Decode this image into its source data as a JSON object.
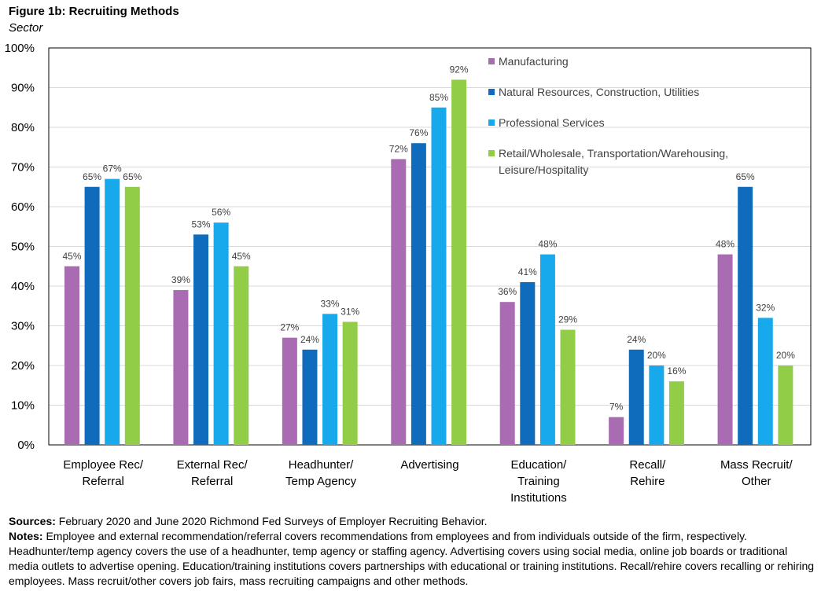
{
  "header": {
    "title": "Figure 1b: Recruiting Methods",
    "subtitle": "Sector"
  },
  "chart_data": {
    "type": "bar",
    "categories": [
      [
        "Employee Rec/",
        "Referral"
      ],
      [
        "External Rec/",
        "Referral"
      ],
      [
        "Headhunter/",
        "Temp Agency"
      ],
      [
        "Advertising"
      ],
      [
        "Education/",
        "Training",
        "Institutions"
      ],
      [
        "Recall/",
        "Rehire"
      ],
      [
        "Mass Recruit/",
        "Other"
      ]
    ],
    "series": [
      {
        "name": "Manufacturing",
        "color": "#a96cb3",
        "values": [
          45,
          39,
          27,
          72,
          36,
          7,
          48
        ]
      },
      {
        "name": "Natural Resources, Construction, Utilities",
        "color": "#0f6cbd",
        "values": [
          65,
          53,
          24,
          76,
          41,
          24,
          65
        ]
      },
      {
        "name": "Professional Services",
        "color": "#18a9ec",
        "values": [
          67,
          56,
          33,
          85,
          48,
          20,
          32
        ]
      },
      {
        "name": [
          "Retail/Wholesale, Transportation/Warehousing,",
          "Leisure/Hospitality"
        ],
        "color": "#92cd48",
        "values": [
          65,
          45,
          31,
          92,
          29,
          16,
          20
        ]
      }
    ],
    "y_ticks": [
      "0%",
      "10%",
      "20%",
      "30%",
      "40%",
      "50%",
      "60%",
      "70%",
      "80%",
      "90%",
      "100%"
    ],
    "ylim": [
      0,
      100
    ],
    "value_suffix": "%",
    "grid": true,
    "legend_position": "top-right"
  },
  "footer": {
    "sources_label": "Sources:",
    "sources_text": " February 2020 and June 2020 Richmond Fed Surveys of Employer Recruiting Behavior.",
    "notes_label": "Notes:",
    "notes_text": " Employee and external recommendation/referral covers recommendations from employees and from individuals outside of the firm, respectively. Headhunter/temp agency covers the use of a headhunter, temp agency or staffing agency. Advertising covers using social media, online job boards or traditional media outlets to advertise opening. Education/training institutions covers partnerships with educational or training institutions. Recall/rehire covers recalling or rehiring employees. Mass recruit/other covers job fairs, mass recruiting campaigns and other methods."
  }
}
